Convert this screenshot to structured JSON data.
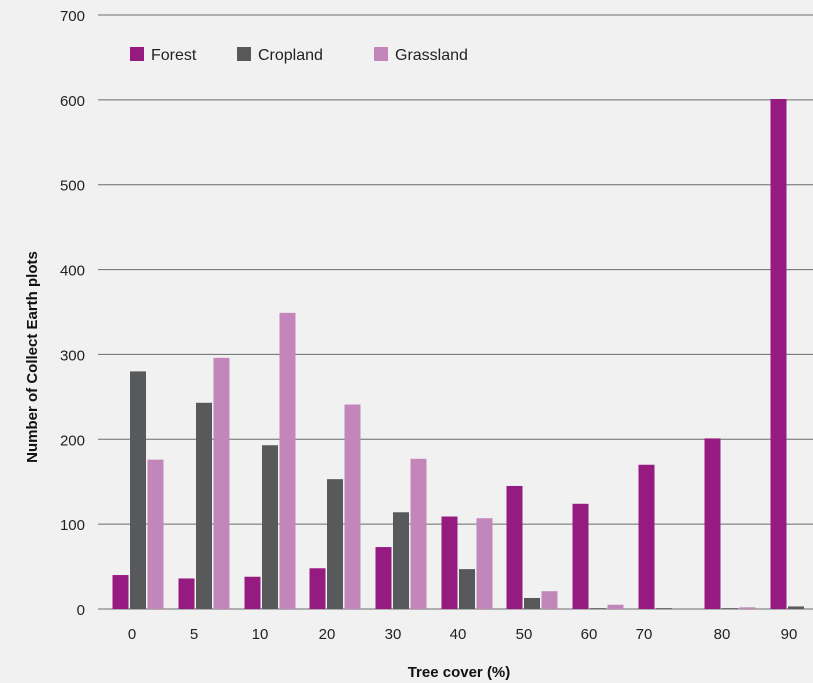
{
  "chart_data": {
    "type": "bar",
    "title": "",
    "xlabel": "Tree cover (%)",
    "ylabel": "Number of Collect Earth plots",
    "ylim": [
      0,
      700
    ],
    "yticks": [
      "0",
      "100",
      "200",
      "300",
      "400",
      "500",
      "600",
      "700"
    ],
    "grid": true,
    "legend_position": "top-left",
    "categories": [
      "0",
      "5",
      "10",
      "20",
      "30",
      "40",
      "50",
      "60",
      "70",
      "80",
      "90"
    ],
    "series": [
      {
        "name": "Forest",
        "color": "#951b81",
        "values": [
          40,
          36,
          38,
          48,
          73,
          109,
          145,
          124,
          170,
          201,
          601
        ]
      },
      {
        "name": "Cropland",
        "color": "#58595b",
        "values": [
          280,
          243,
          193,
          153,
          114,
          47,
          13,
          1,
          1,
          1,
          3
        ]
      },
      {
        "name": "Grassland",
        "color": "#c286bb",
        "values": [
          176,
          296,
          349,
          241,
          177,
          107,
          21,
          5,
          0,
          2,
          0
        ]
      }
    ]
  }
}
